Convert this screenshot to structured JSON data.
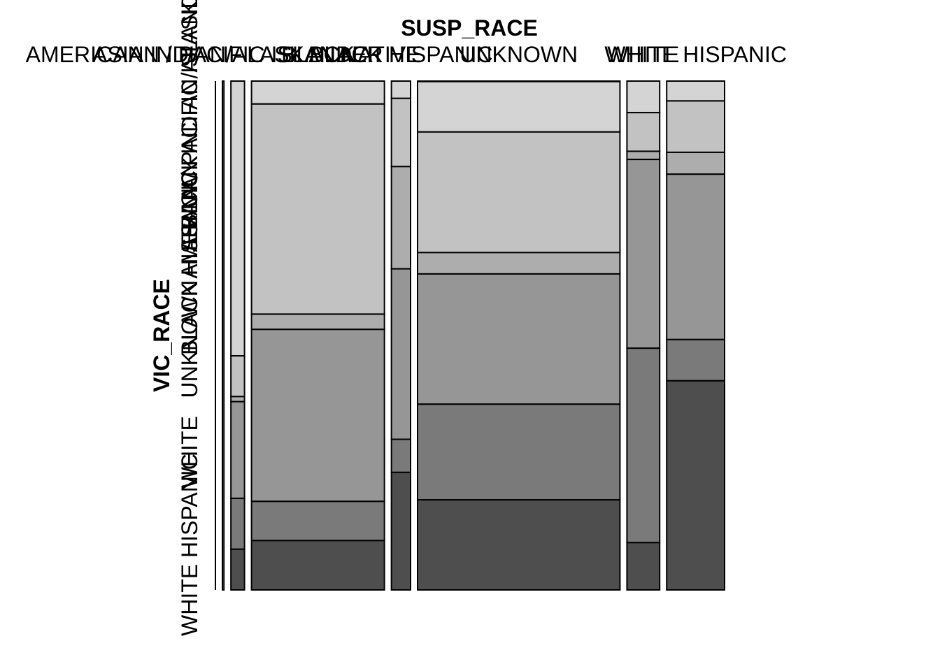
{
  "chart_data": {
    "type": "mosaic",
    "title": "",
    "xlabel": "SUSP_RACE",
    "ylabel": "VIC_RACE",
    "susp_race_categories": [
      "AMERICAN INDIAN/ALASKAN NATIVE",
      "ASIAN / PACIFIC ISLANDER",
      "BLACK",
      "BLACK HISPANIC",
      "UNKNOWN",
      "WHITE",
      "WHITE HISPANIC"
    ],
    "vic_race_categories": [
      "AMERICAN INDIAN/ALASKAN NATIVE",
      "ASIAN / PACIFIC ISLANDER",
      "BLACK",
      "BLACK HISPANIC",
      "UNKNOWN",
      "WHITE",
      "WHITE HISPANIC"
    ],
    "susp_race_proportions": [
      0.003,
      0.027,
      0.264,
      0.038,
      0.402,
      0.065,
      0.115
    ],
    "vic_race_proportions_by_susp_race": [
      [
        1.0,
        0.0,
        0.0,
        0.0,
        0.0,
        0.0,
        0.0
      ],
      [
        0.0,
        0.54,
        0.08,
        0.01,
        0.19,
        0.1,
        0.08
      ],
      [
        0.0,
        0.045,
        0.413,
        0.03,
        0.338,
        0.077,
        0.097
      ],
      [
        0.0,
        0.034,
        0.134,
        0.201,
        0.335,
        0.065,
        0.231
      ],
      [
        0.001,
        0.099,
        0.237,
        0.042,
        0.256,
        0.188,
        0.177
      ],
      [
        0.0,
        0.062,
        0.076,
        0.016,
        0.371,
        0.382,
        0.093
      ],
      [
        0.0,
        0.039,
        0.101,
        0.043,
        0.325,
        0.081,
        0.411
      ]
    ],
    "fill_colors": [
      "#e6e6e6",
      "#d4d4d4",
      "#c2c2c2",
      "#adadad",
      "#969696",
      "#7a7a7a",
      "#4e4e4e"
    ]
  }
}
